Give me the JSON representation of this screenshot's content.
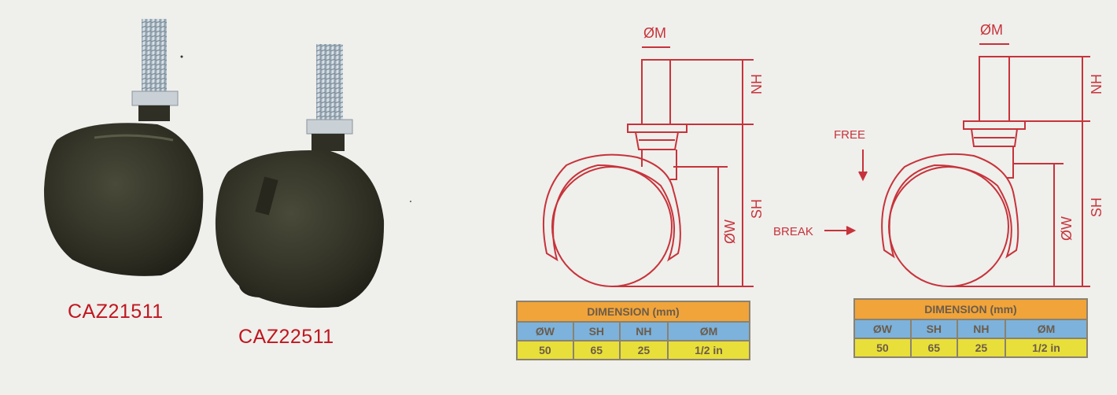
{
  "products": [
    {
      "code": "CAZ21511"
    },
    {
      "code": "CAZ22511"
    }
  ],
  "drawing_labels": {
    "stem_diameter": "ØM",
    "stem_height": "NH",
    "system_height": "SH",
    "wheel_diameter": "ØW",
    "free": "FREE",
    "break": "BREAK"
  },
  "tables": [
    {
      "header": "DIMENSION (mm)",
      "columns": [
        "ØW",
        "SH",
        "NH",
        "ØM"
      ],
      "values": [
        "50",
        "65",
        "25",
        "1/2 in"
      ]
    },
    {
      "header": "DIMENSION (mm)",
      "columns": [
        "ØW",
        "SH",
        "NH",
        "ØM"
      ],
      "values": [
        "50",
        "65",
        "25",
        "1/2 in"
      ]
    }
  ],
  "colors": {
    "drawing_red": "#c7333a",
    "label_red": "#c0161e",
    "header_orange": "#f0a43a",
    "column_blue": "#7cb2dc",
    "value_yellow": "#e8df3a"
  }
}
